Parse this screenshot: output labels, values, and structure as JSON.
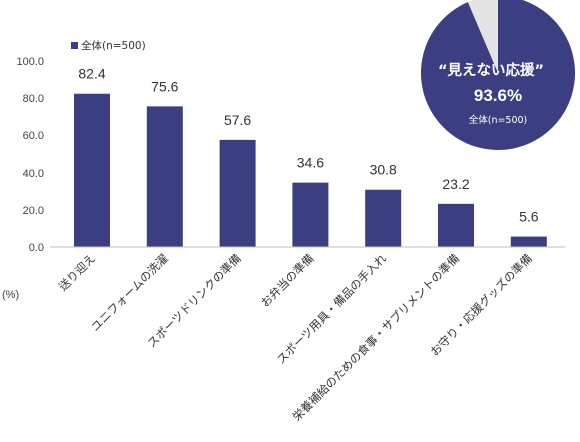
{
  "colors": {
    "bar": "#3b3f82",
    "pie_main": "#3b3f82",
    "pie_rest": "#e4e4e4",
    "axis": "#bfbfbf"
  },
  "legend": {
    "label": "全体(n=500)"
  },
  "unit_label": "(%)",
  "chart_data": [
    {
      "type": "bar",
      "categories": [
        "送り迎え",
        "ユニフォームの洗濯",
        "スポーツドリンクの準備",
        "お弁当の準備",
        "スポーツ用具・備品の手入れ",
        "栄養補給のための食事・サプリメントの準備",
        "お守り・応援グッズの準備"
      ],
      "series": [
        {
          "name": "全体(n=500)",
          "values": [
            82.4,
            75.6,
            57.6,
            34.6,
            30.8,
            23.2,
            5.6
          ]
        }
      ],
      "value_labels": [
        "82.4",
        "75.6",
        "57.6",
        "34.6",
        "30.8",
        "23.2",
        "5.6"
      ],
      "y_ticks": [
        "0.0",
        "20.0",
        "40.0",
        "60.0",
        "80.0",
        "100.0"
      ],
      "ylim": [
        0,
        100
      ],
      "ylabel": "(%)",
      "grid": false,
      "legend_position": "top-left"
    },
    {
      "type": "pie",
      "title": "“見えない応援”",
      "label": "93.6%",
      "sublabel": "全体(n=500)",
      "slices": [
        {
          "value": 93.6
        },
        {
          "value": 6.4
        }
      ]
    }
  ]
}
